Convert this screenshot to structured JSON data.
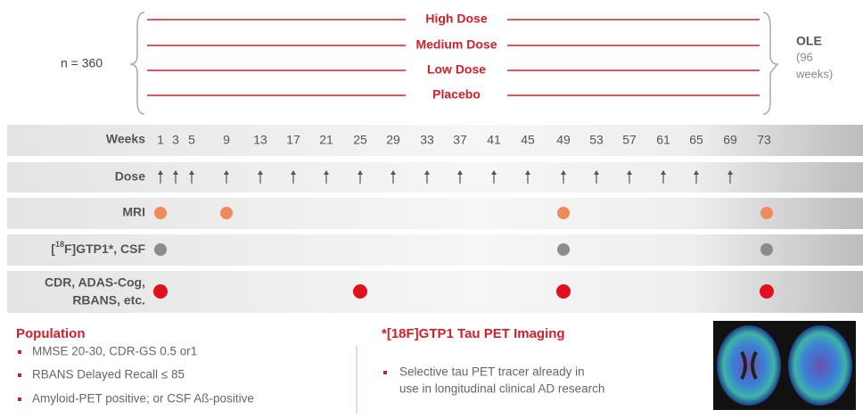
{
  "enrollment": "n = 360",
  "arms": [
    "High Dose",
    "Medium Dose",
    "Low Dose",
    "Placebo"
  ],
  "extension": {
    "label": "OLE",
    "duration": [
      "(96",
      "weeks)"
    ]
  },
  "schedule": {
    "weeks_label": "Weeks",
    "weeks": [
      "1",
      "3",
      "5",
      "9",
      "13",
      "17",
      "21",
      "25",
      "29",
      "33",
      "37",
      "41",
      "45",
      "49",
      "53",
      "57",
      "61",
      "65",
      "69",
      "73"
    ],
    "rows": [
      "Dose",
      "MRI",
      {
        "pre": "[",
        "sup": "18",
        "post": "F]GTP1*, CSF"
      },
      [
        "CDR, ADAS-Cog,",
        "RBANS, etc."
      ]
    ]
  },
  "population": {
    "heading": "Population",
    "items": [
      "MMSE 20-30, CDR-GS 0.5 or1",
      "RBANS Delayed Recall ≤ 85",
      "Amyloid-PET positive; or CSF Aß-positive"
    ]
  },
  "imaging": {
    "heading": "*[18F]GTP1 Tau PET Imaging",
    "lines": [
      "Selective tau PET tracer already in",
      "use in longitudinal clinical AD research"
    ]
  }
}
